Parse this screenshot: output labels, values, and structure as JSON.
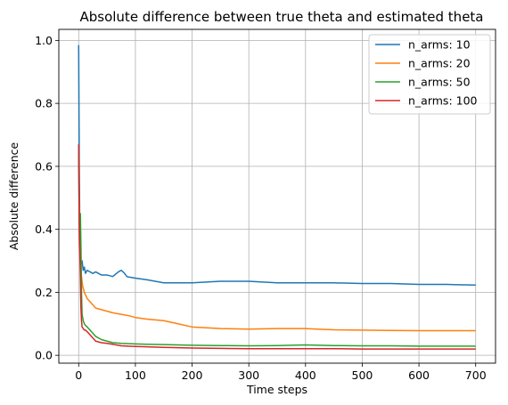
{
  "chart_data": {
    "type": "line",
    "title": "Absolute difference between true theta and estimated theta",
    "xlabel": "Time steps",
    "ylabel": "Absolute difference",
    "xlim": [
      -35,
      735
    ],
    "ylim": [
      -0.025,
      1.035
    ],
    "xticks": [
      0,
      100,
      200,
      300,
      400,
      500,
      600,
      700
    ],
    "yticks": [
      0.0,
      0.2,
      0.4,
      0.6,
      0.8,
      1.0
    ],
    "ytick_labels": [
      "0.0",
      "0.2",
      "0.4",
      "0.6",
      "0.8",
      "1.0"
    ],
    "grid": true,
    "legend_position": "top-right",
    "series": [
      {
        "name": "n_arms: 10",
        "color": "#1f77b4",
        "x": [
          0,
          1,
          2,
          3,
          4,
          5,
          6,
          8,
          10,
          12,
          15,
          20,
          25,
          30,
          40,
          50,
          60,
          70,
          75,
          80,
          85,
          90,
          100,
          120,
          150,
          200,
          250,
          300,
          350,
          400,
          450,
          500,
          550,
          600,
          650,
          700
        ],
        "y": [
          0.985,
          0.62,
          0.4,
          0.34,
          0.3,
          0.29,
          0.3,
          0.27,
          0.28,
          0.26,
          0.27,
          0.265,
          0.26,
          0.265,
          0.255,
          0.255,
          0.25,
          0.265,
          0.27,
          0.262,
          0.25,
          0.248,
          0.245,
          0.24,
          0.23,
          0.23,
          0.235,
          0.235,
          0.23,
          0.23,
          0.23,
          0.228,
          0.228,
          0.225,
          0.225,
          0.223
        ]
      },
      {
        "name": "n_arms: 20",
        "color": "#ff7f0e",
        "x": [
          0,
          1,
          2,
          3,
          5,
          7,
          10,
          15,
          20,
          25,
          30,
          40,
          50,
          60,
          75,
          90,
          100,
          120,
          150,
          175,
          200,
          250,
          300,
          350,
          400,
          420,
          450,
          500,
          550,
          600,
          650,
          700
        ],
        "y": [
          0.66,
          0.5,
          0.38,
          0.3,
          0.25,
          0.22,
          0.2,
          0.18,
          0.17,
          0.16,
          0.15,
          0.145,
          0.14,
          0.135,
          0.13,
          0.125,
          0.12,
          0.115,
          0.11,
          0.1,
          0.09,
          0.085,
          0.083,
          0.085,
          0.085,
          0.083,
          0.081,
          0.08,
          0.079,
          0.078,
          0.078,
          0.078
        ]
      },
      {
        "name": "n_arms: 50",
        "color": "#2ca02c",
        "x": [
          0,
          1,
          2,
          3,
          4,
          5,
          6,
          8,
          10,
          12,
          15,
          20,
          25,
          30,
          40,
          50,
          60,
          75,
          100,
          120,
          150,
          200,
          250,
          300,
          350,
          400,
          450,
          500,
          550,
          600,
          650,
          700
        ],
        "y": [
          0.64,
          0.45,
          0.35,
          0.45,
          0.35,
          0.2,
          0.13,
          0.11,
          0.1,
          0.095,
          0.09,
          0.08,
          0.07,
          0.06,
          0.05,
          0.045,
          0.04,
          0.038,
          0.036,
          0.035,
          0.034,
          0.032,
          0.031,
          0.03,
          0.031,
          0.033,
          0.031,
          0.03,
          0.03,
          0.029,
          0.029,
          0.029
        ]
      },
      {
        "name": "n_arms: 100",
        "color": "#d62728",
        "x": [
          0,
          1,
          2,
          3,
          4,
          5,
          6,
          8,
          10,
          12,
          15,
          20,
          25,
          30,
          40,
          50,
          60,
          75,
          100,
          120,
          150,
          200,
          250,
          300,
          350,
          400,
          450,
          500,
          550,
          600,
          650,
          700
        ],
        "y": [
          0.67,
          0.4,
          0.33,
          0.25,
          0.15,
          0.11,
          0.09,
          0.085,
          0.08,
          0.08,
          0.075,
          0.065,
          0.055,
          0.045,
          0.04,
          0.038,
          0.035,
          0.03,
          0.028,
          0.027,
          0.025,
          0.023,
          0.022,
          0.021,
          0.021,
          0.021,
          0.021,
          0.02,
          0.02,
          0.02,
          0.02,
          0.02
        ]
      }
    ]
  }
}
